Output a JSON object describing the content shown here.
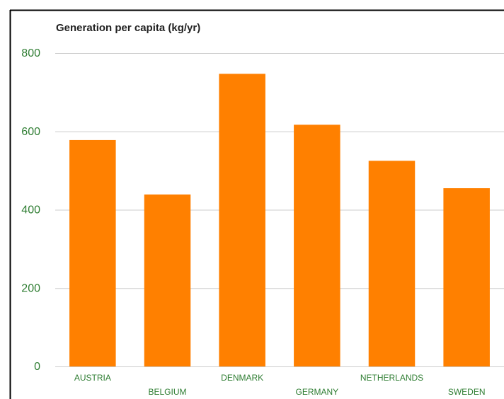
{
  "chart_data": {
    "type": "bar",
    "title": "Generation per capita (kg/yr)",
    "categories": [
      "AUSTRIA",
      "BELGIUM",
      "DENMARK",
      "GERMANY",
      "NETHERLANDS",
      "SWEDEN"
    ],
    "values": [
      578,
      439,
      747,
      617,
      525,
      455
    ],
    "color": "#ff8000",
    "ylim": [
      0,
      800
    ],
    "yticks": [
      0,
      200,
      400,
      600,
      800
    ],
    "grid": true
  }
}
